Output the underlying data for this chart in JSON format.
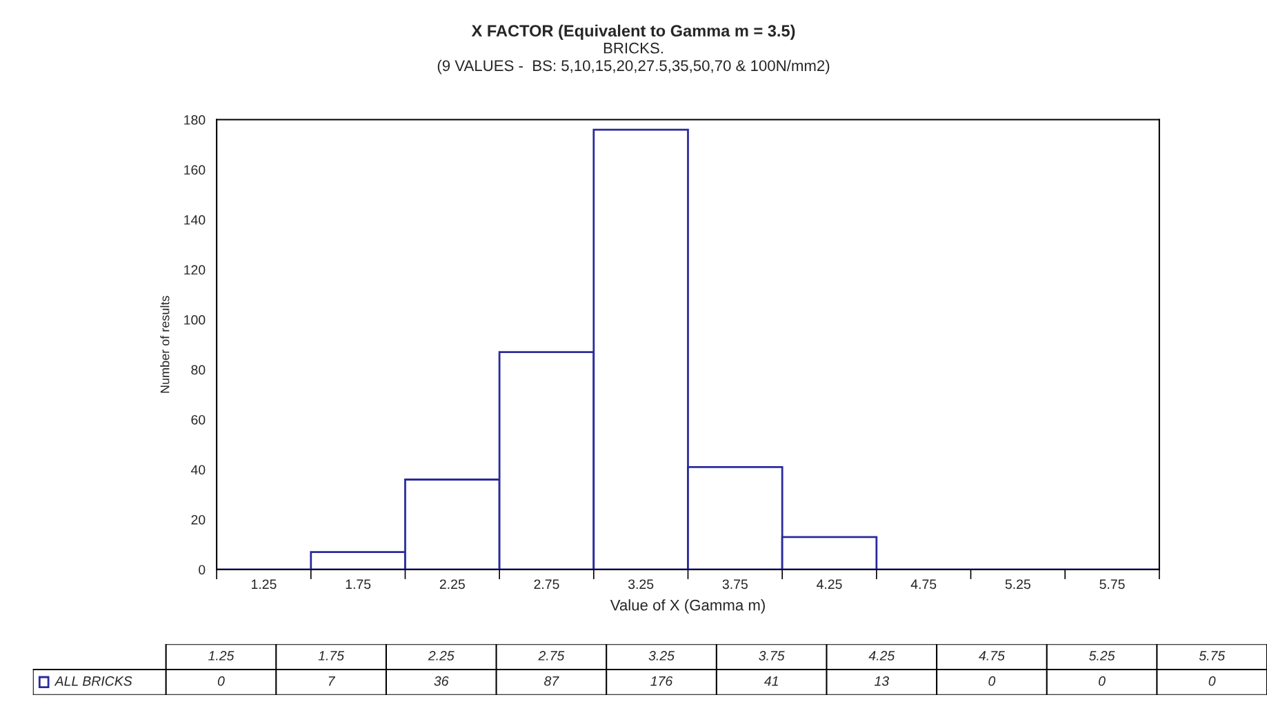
{
  "chart_data": {
    "type": "bar",
    "title": "X FACTOR (Equivalent to Gamma m = 3.5)",
    "subtitle": "BRICKS.\n(9 VALUES -  BS: 5,10,15,20,27.5,35,50,70 & 100N/mm2)",
    "xlabel": "Value of X (Gamma m)",
    "ylabel": "Number of results",
    "categories": [
      "1.25",
      "1.75",
      "2.25",
      "2.75",
      "3.25",
      "3.75",
      "4.25",
      "4.75",
      "5.25",
      "5.75"
    ],
    "series": [
      {
        "name": "ALL BRICKS",
        "color": "#2a2a9c",
        "values": [
          0,
          7,
          36,
          87,
          176,
          41,
          13,
          0,
          0,
          0
        ]
      }
    ],
    "ylim": [
      0,
      180
    ],
    "yticks": [
      0,
      20,
      40,
      60,
      80,
      100,
      120,
      140,
      160,
      180
    ],
    "legend": "bottom",
    "data_labels": true
  }
}
